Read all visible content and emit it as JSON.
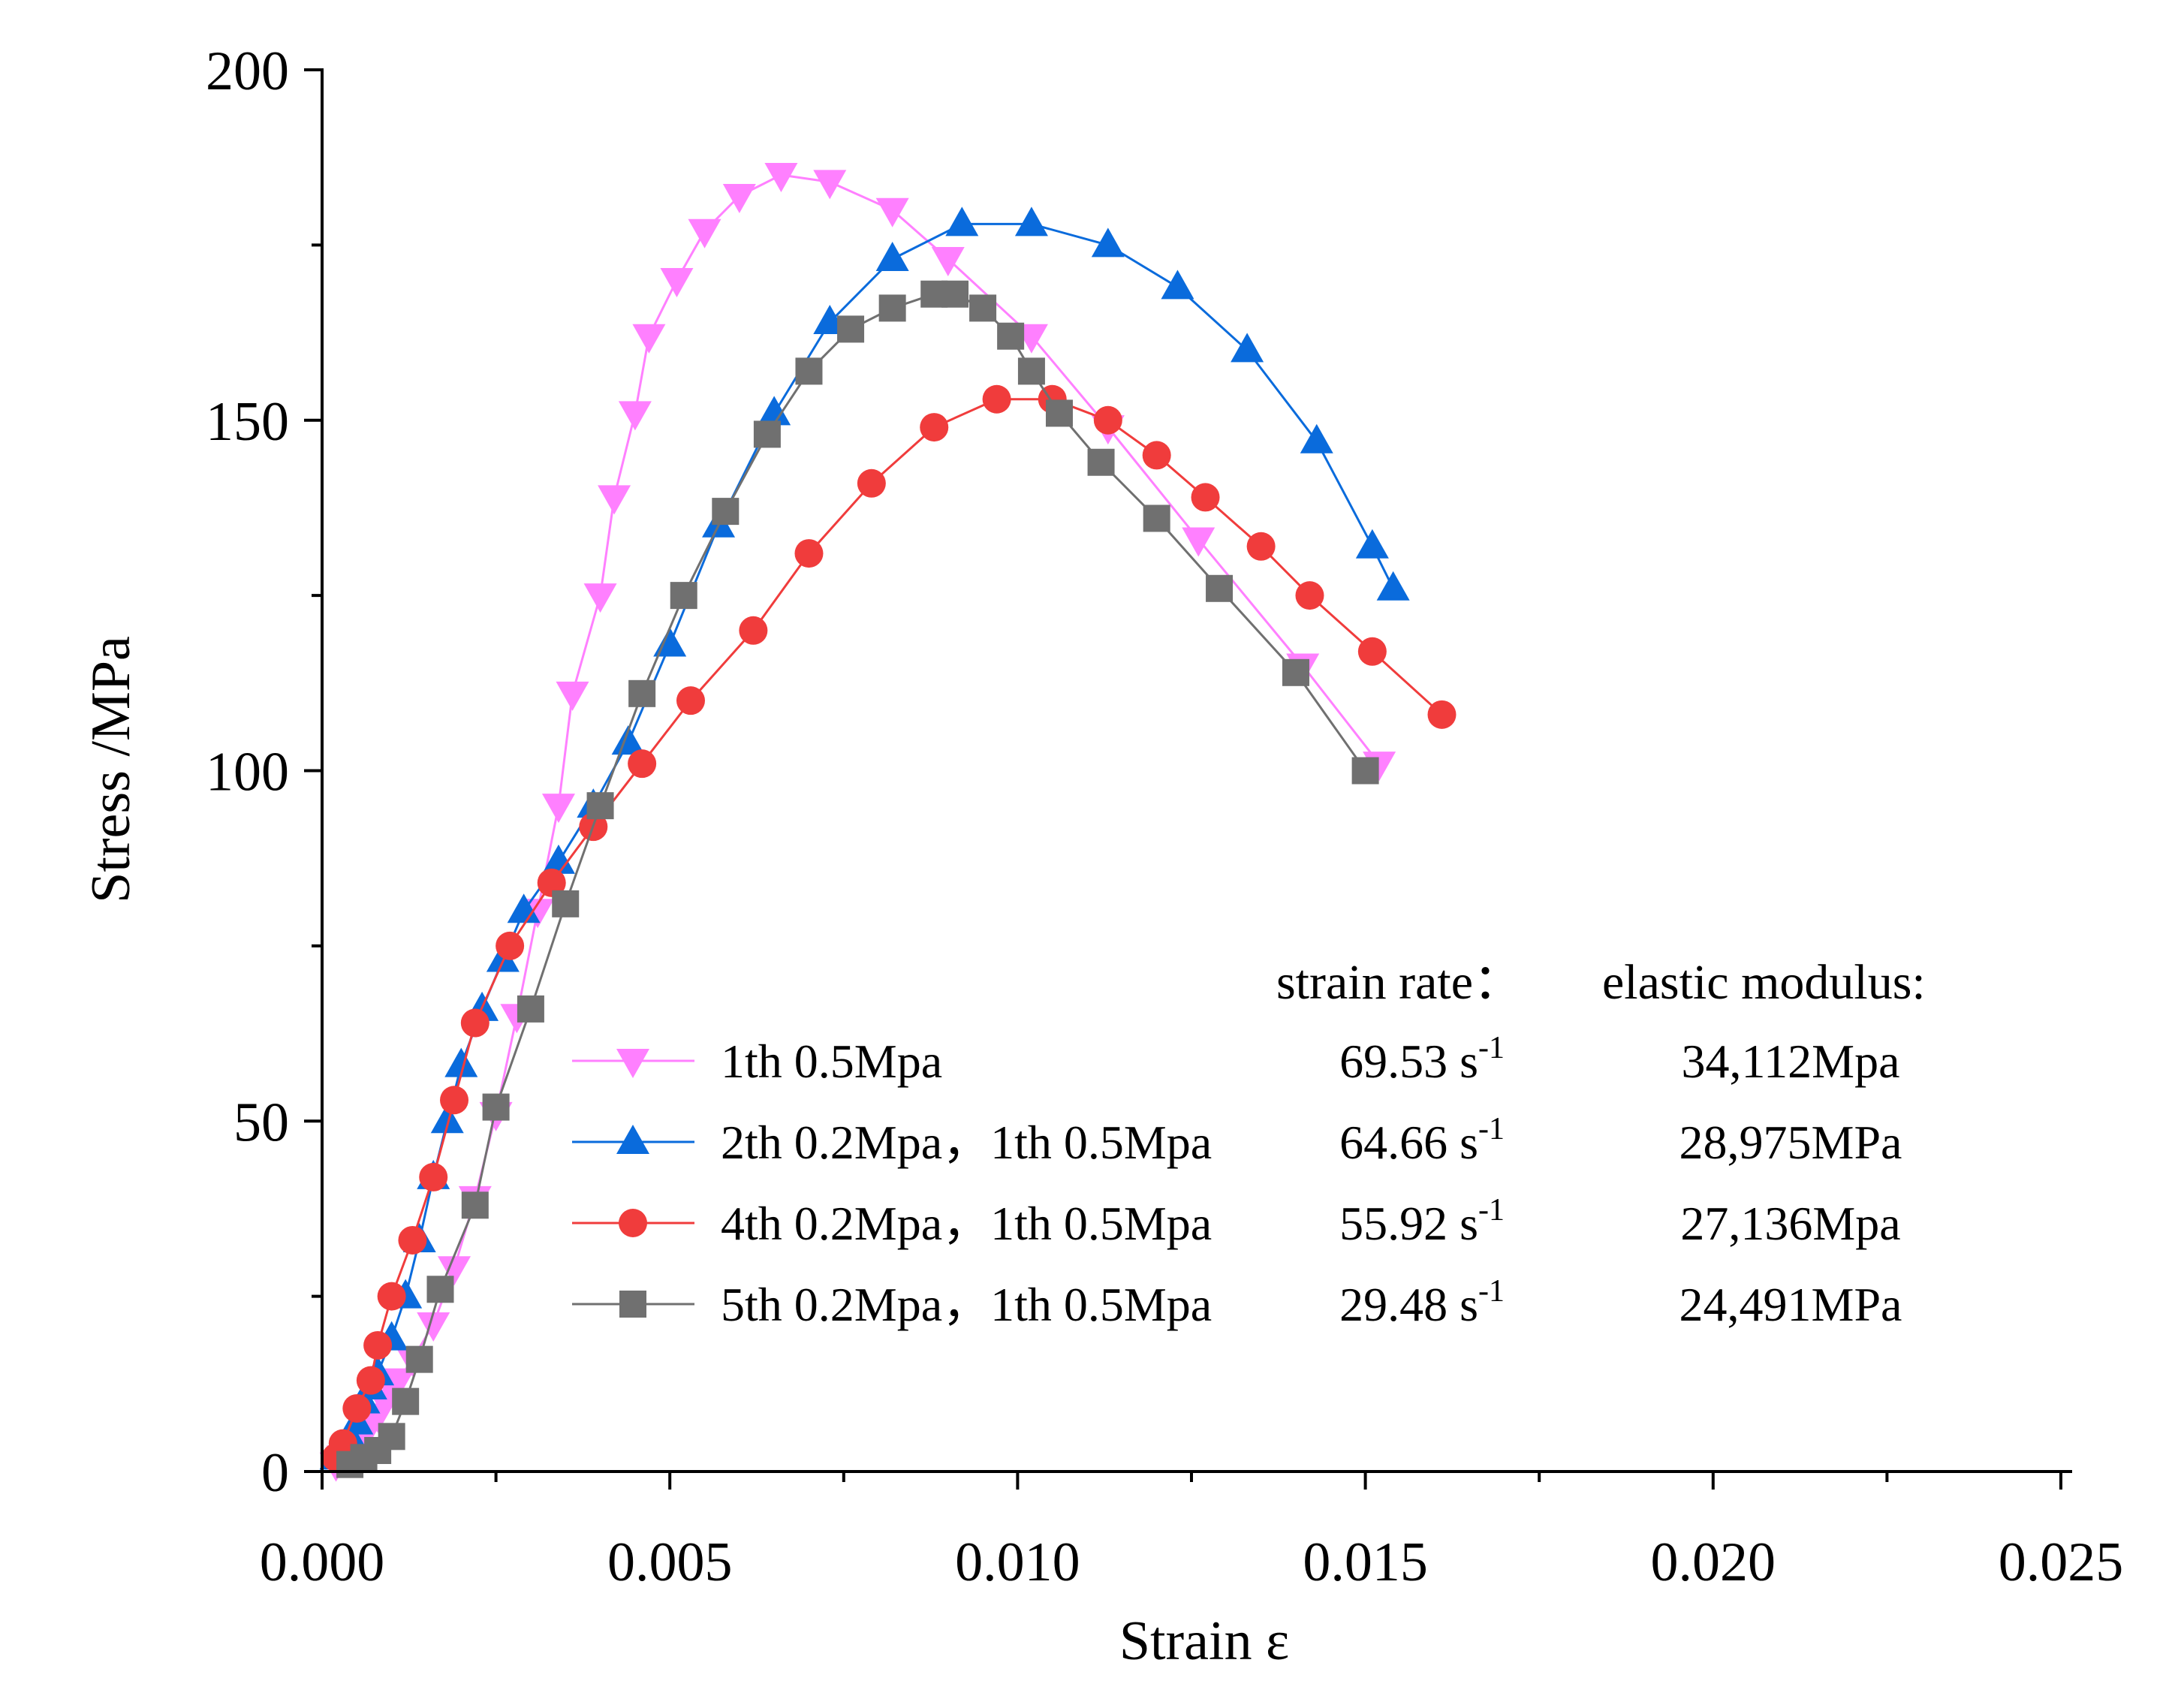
{
  "chart_data": {
    "type": "line",
    "title": "",
    "xlabel": "Strain ε",
    "ylabel": "Stress /MPa",
    "xlim": [
      0,
      0.025
    ],
    "ylim": [
      0,
      200
    ],
    "xticks": [
      {
        "value": 0,
        "label": "0.000"
      },
      {
        "value": 0.005,
        "label": "0.005"
      },
      {
        "value": 0.01,
        "label": "0.010"
      },
      {
        "value": 0.015,
        "label": "0.015"
      },
      {
        "value": 0.02,
        "label": "0.020"
      },
      {
        "value": 0.025,
        "label": "0.025"
      }
    ],
    "yticks": [
      {
        "value": 0,
        "label": "0"
      },
      {
        "value": 50,
        "label": "50"
      },
      {
        "value": 100,
        "label": "100"
      },
      {
        "value": 150,
        "label": "150"
      },
      {
        "value": 200,
        "label": "200"
      }
    ],
    "grid": false,
    "legend_position": "lower-center",
    "table_headers": {
      "strain_rate": "strain rate：",
      "elastic_modulus": "elastic modulus:"
    },
    "series": [
      {
        "name": "1th 0.5Mpa",
        "strain_rate": "69.53 s",
        "strain_rate_sup": "-1",
        "elastic_modulus": "34,112Mpa",
        "color": "#ff80ff",
        "marker": "triangle-down",
        "points": [
          [
            0.0002,
            1
          ],
          [
            0.0003,
            2
          ],
          [
            0.0004,
            3
          ],
          [
            0.0005,
            4
          ],
          [
            0.0006,
            5
          ],
          [
            0.0007,
            7
          ],
          [
            0.0008,
            8
          ],
          [
            0.0009,
            10
          ],
          [
            0.001,
            12
          ],
          [
            0.0011,
            13
          ],
          [
            0.0013,
            16
          ],
          [
            0.0016,
            21
          ],
          [
            0.0019,
            29
          ],
          [
            0.0022,
            39
          ],
          [
            0.0025,
            51
          ],
          [
            0.0028,
            65
          ],
          [
            0.0031,
            80
          ],
          [
            0.0034,
            95
          ],
          [
            0.0036,
            111
          ],
          [
            0.004,
            125
          ],
          [
            0.0042,
            139
          ],
          [
            0.0045,
            151
          ],
          [
            0.0047,
            162
          ],
          [
            0.0051,
            170
          ],
          [
            0.0055,
            177
          ],
          [
            0.006,
            182
          ],
          [
            0.0066,
            185
          ],
          [
            0.0073,
            184
          ],
          [
            0.0082,
            180
          ],
          [
            0.009,
            173
          ],
          [
            0.0102,
            162
          ],
          [
            0.0113,
            149
          ],
          [
            0.0126,
            133
          ],
          [
            0.0141,
            115
          ],
          [
            0.0152,
            101
          ]
        ]
      },
      {
        "name": "2th 0.2Mpa，1th 0.5Mpa",
        "strain_rate": "64.66 s",
        "strain_rate_sup": "-1",
        "elastic_modulus": "28,975MPa",
        "color": "#0a6bdc",
        "marker": "triangle-up",
        "points": [
          [
            0.0002,
            2
          ],
          [
            0.0003,
            3
          ],
          [
            0.0004,
            5
          ],
          [
            0.0005,
            7
          ],
          [
            0.0006,
            10
          ],
          [
            0.0007,
            12
          ],
          [
            0.0008,
            14
          ],
          [
            0.001,
            19
          ],
          [
            0.0012,
            25
          ],
          [
            0.0014,
            33
          ],
          [
            0.0016,
            42
          ],
          [
            0.0018,
            50
          ],
          [
            0.002,
            58
          ],
          [
            0.0023,
            66
          ],
          [
            0.0026,
            73
          ],
          [
            0.0029,
            80
          ],
          [
            0.0034,
            87
          ],
          [
            0.0039,
            95
          ],
          [
            0.0044,
            104
          ],
          [
            0.005,
            118
          ],
          [
            0.0057,
            135
          ],
          [
            0.0065,
            151
          ],
          [
            0.0073,
            164
          ],
          [
            0.0082,
            173
          ],
          [
            0.0092,
            178
          ],
          [
            0.0102,
            178
          ],
          [
            0.0113,
            175
          ],
          [
            0.0123,
            169
          ],
          [
            0.0133,
            160
          ],
          [
            0.0143,
            147
          ],
          [
            0.0151,
            132
          ],
          [
            0.0154,
            126
          ]
        ]
      },
      {
        "name": "4th 0.2Mpa，1th 0.5Mpa",
        "strain_rate": "55.92 s",
        "strain_rate_sup": "-1",
        "elastic_modulus": "27,136Mpa",
        "color": "#f03c3c",
        "marker": "circle",
        "points": [
          [
            0.0002,
            2
          ],
          [
            0.0003,
            4
          ],
          [
            0.0005,
            9
          ],
          [
            0.0007,
            13
          ],
          [
            0.0008,
            18
          ],
          [
            0.001,
            25
          ],
          [
            0.0013,
            33
          ],
          [
            0.0016,
            42
          ],
          [
            0.0019,
            53
          ],
          [
            0.0022,
            64
          ],
          [
            0.0027,
            75
          ],
          [
            0.0033,
            84
          ],
          [
            0.0039,
            92
          ],
          [
            0.0046,
            101
          ],
          [
            0.0053,
            110
          ],
          [
            0.0062,
            120
          ],
          [
            0.007,
            131
          ],
          [
            0.0079,
            141
          ],
          [
            0.0088,
            149
          ],
          [
            0.0097,
            153
          ],
          [
            0.0105,
            153
          ],
          [
            0.0113,
            150
          ],
          [
            0.012,
            145
          ],
          [
            0.0127,
            139
          ],
          [
            0.0135,
            132
          ],
          [
            0.0142,
            125
          ],
          [
            0.0151,
            117
          ],
          [
            0.0161,
            108
          ]
        ]
      },
      {
        "name": "5th 0.2Mpa，1th 0.5Mpa",
        "strain_rate": "29.48 s",
        "strain_rate_sup": "-1",
        "elastic_modulus": "24,491MPa",
        "color": "#707070",
        "marker": "square",
        "points": [
          [
            0.0004,
            1
          ],
          [
            0.0006,
            2
          ],
          [
            0.0008,
            3
          ],
          [
            0.001,
            5
          ],
          [
            0.0012,
            10
          ],
          [
            0.0014,
            16
          ],
          [
            0.0017,
            26
          ],
          [
            0.0022,
            38
          ],
          [
            0.0025,
            52
          ],
          [
            0.003,
            66
          ],
          [
            0.0035,
            81
          ],
          [
            0.004,
            95
          ],
          [
            0.0046,
            111
          ],
          [
            0.0052,
            125
          ],
          [
            0.0058,
            137
          ],
          [
            0.0064,
            148
          ],
          [
            0.007,
            157
          ],
          [
            0.0076,
            163
          ],
          [
            0.0082,
            166
          ],
          [
            0.0088,
            168
          ],
          [
            0.0091,
            168
          ],
          [
            0.0095,
            166
          ],
          [
            0.0099,
            162
          ],
          [
            0.0102,
            157
          ],
          [
            0.0106,
            151
          ],
          [
            0.0112,
            144
          ],
          [
            0.012,
            136
          ],
          [
            0.0129,
            126
          ],
          [
            0.014,
            114
          ],
          [
            0.015,
            100
          ]
        ]
      }
    ]
  }
}
